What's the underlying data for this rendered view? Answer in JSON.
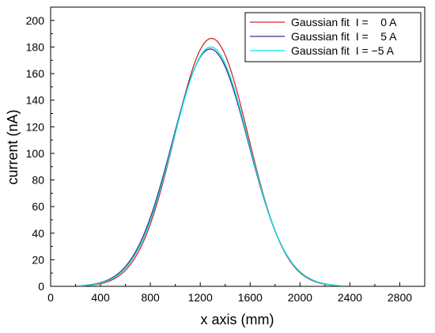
{
  "chart_data": {
    "type": "line",
    "title": "",
    "xlabel": "x axis (mm)",
    "ylabel": "current (nA)",
    "xlim": [
      0,
      3000
    ],
    "ylim": [
      0,
      210
    ],
    "x_ticks": [
      0,
      400,
      800,
      1200,
      1600,
      2000,
      2400,
      2800
    ],
    "y_ticks": [
      0,
      20,
      40,
      60,
      80,
      100,
      120,
      140,
      160,
      180,
      200
    ],
    "grid": false,
    "legend_position": "top-right",
    "series": [
      {
        "name": "Gaussian fit  I =    0 A",
        "color": "#d62728",
        "gaussian": {
          "amplitude": 186.5,
          "center": 1290,
          "sigma": 295
        },
        "x_range": [
          230,
          2270
        ]
      },
      {
        "name": "Gaussian fit  I =    5 A",
        "color": "#3a2d8c",
        "gaussian": {
          "amplitude": 178.5,
          "center": 1280,
          "sigma": 305
        },
        "x_range": [
          230,
          2270
        ]
      },
      {
        "name": "Gaussian fit  I = −5 A",
        "color": "#00e6e6",
        "gaussian": {
          "amplitude": 180,
          "center": 1285,
          "sigma": 302
        },
        "x_range": [
          230,
          2330
        ]
      }
    ]
  }
}
